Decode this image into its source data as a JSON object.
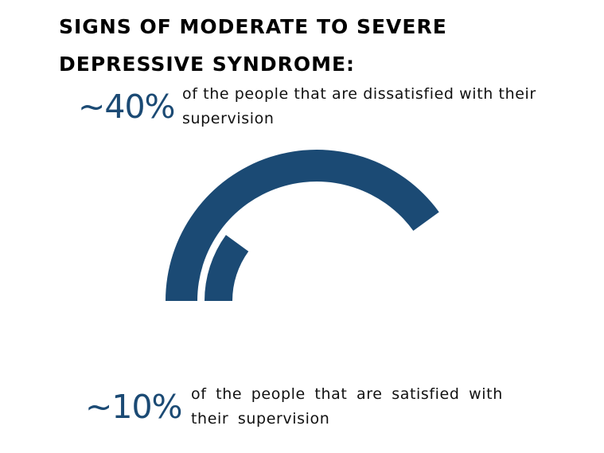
{
  "title": "Signs of moderate to severe depressive syndrome:",
  "stats": [
    {
      "value": "~40%",
      "caption": "of the people that are dissatisfied with their supervision"
    },
    {
      "value": "~10%",
      "caption": "of the people that are satisfied with their supervision"
    }
  ],
  "colors": {
    "accent": "#1b4a74",
    "text": "#111111"
  },
  "chart_data": {
    "type": "radial-bar",
    "categories": [
      "of the people that are dissatisfied with their supervision",
      "of the people that are satisfied with their supervision"
    ],
    "values": [
      40,
      10
    ],
    "max": 100,
    "color": "#1b4a74"
  }
}
